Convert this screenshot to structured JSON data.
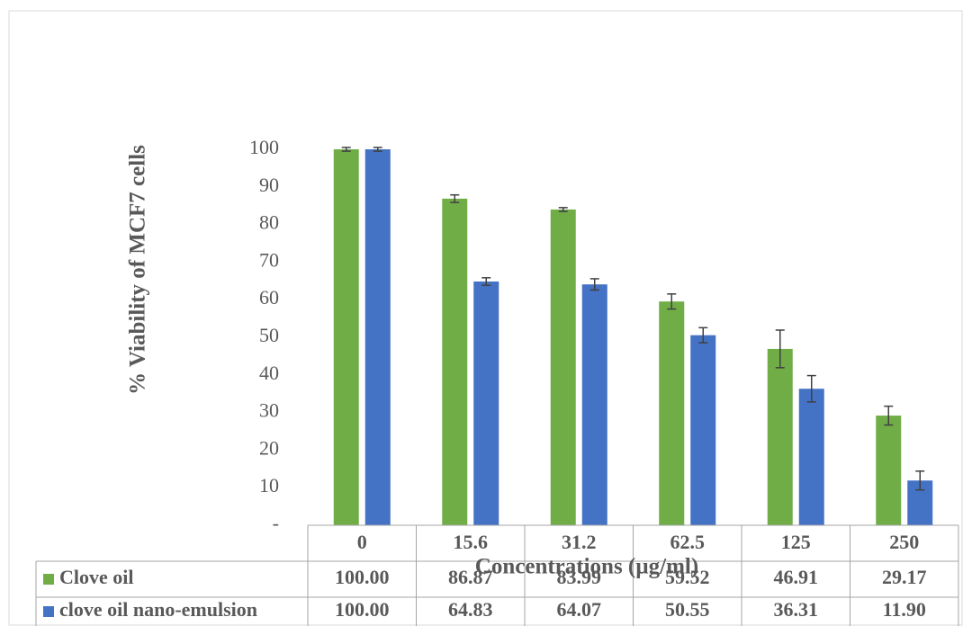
{
  "chart_data": {
    "type": "bar",
    "y_label": "% Viability of MCF7 cells",
    "x_label": "Concentrations (µg/ml)",
    "categories": [
      "0",
      "15.6",
      "31.2",
      "62.5",
      "125",
      "250"
    ],
    "series": [
      {
        "name": "Clove oil",
        "color": "#70ad47",
        "values": [
          100,
          86.87,
          83.99,
          59.52,
          46.91,
          29.17
        ],
        "value_labels": [
          "100.00",
          "86.87",
          "83.99",
          "59.52",
          "46.91",
          "29.17"
        ],
        "errors": [
          0.5,
          1,
          0.5,
          2,
          5,
          2.5
        ]
      },
      {
        "name": "clove oil nano-emulsion",
        "color": "#4472c4",
        "values": [
          100,
          64.83,
          64.07,
          50.55,
          36.31,
          11.9
        ],
        "value_labels": [
          "100.00",
          "64.83",
          "64.07",
          "50.55",
          "36.31",
          "11.90"
        ],
        "errors": [
          0.5,
          1,
          1.5,
          2,
          3.5,
          2.5
        ]
      }
    ],
    "ylim": [
      0,
      100
    ],
    "yticks": [
      {
        "value": 0,
        "label": "-"
      },
      10,
      20,
      30,
      40,
      50,
      60,
      70,
      80,
      90,
      100
    ],
    "data_table": true
  }
}
